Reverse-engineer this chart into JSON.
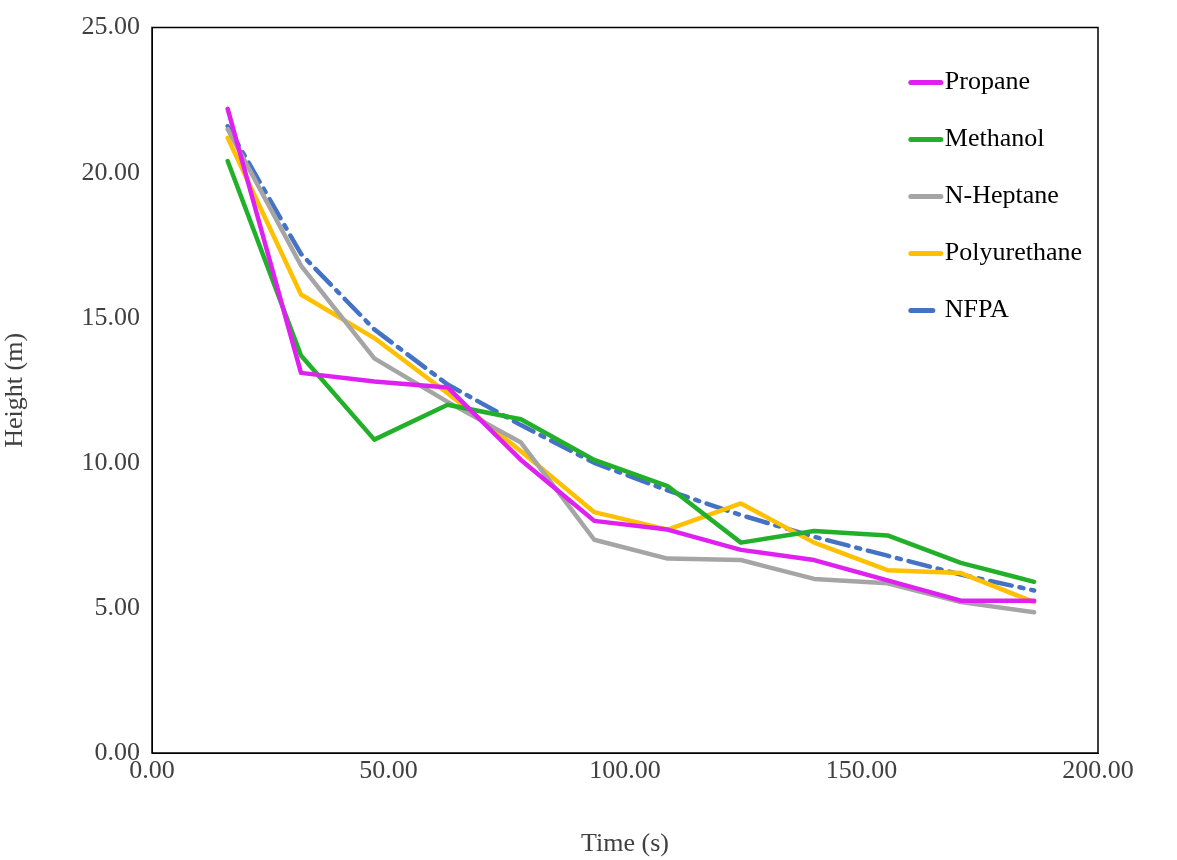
{
  "chart_data": {
    "type": "line",
    "xlabel": "Time (s)",
    "ylabel": "Height (m)",
    "x": [
      16,
      31.5,
      47,
      62.5,
      78,
      93.5,
      109,
      124.5,
      140,
      155.5,
      171,
      186.5
    ],
    "xlim": [
      0,
      200
    ],
    "xticks": [
      {
        "value": 0,
        "label": "0.00"
      },
      {
        "value": 50,
        "label": "50.00"
      },
      {
        "value": 100,
        "label": "100.00"
      },
      {
        "value": 150,
        "label": "150.00"
      },
      {
        "value": 200,
        "label": "200.00"
      }
    ],
    "ylim": [
      0,
      25
    ],
    "yticks": [
      {
        "value": 0,
        "label": "0.00"
      },
      {
        "value": 5,
        "label": "5.00"
      },
      {
        "value": 10,
        "label": "10.00"
      },
      {
        "value": 15,
        "label": "15.00"
      },
      {
        "value": 20,
        "label": "20.00"
      },
      {
        "value": 25,
        "label": "25.00"
      }
    ],
    "grid": false,
    "legend": "top right",
    "series": [
      {
        "name": "Propane",
        "color": "#e020f0",
        "values": [
          22.2,
          13.1,
          12.8,
          12.6,
          10.1,
          8.0,
          7.7,
          7.0,
          6.65,
          5.95,
          5.25,
          5.25
        ]
      },
      {
        "name": "Methanol",
        "color": "#22b02a",
        "values": [
          20.4,
          13.7,
          10.8,
          12.0,
          11.5,
          10.1,
          9.2,
          7.25,
          7.65,
          7.5,
          6.55,
          5.9
        ]
      },
      {
        "name": "N-Heptane",
        "color": "#a5a5a5",
        "values": [
          21.5,
          16.8,
          13.6,
          12.1,
          10.7,
          7.35,
          6.7,
          6.65,
          6.0,
          5.85,
          5.2,
          4.85
        ]
      },
      {
        "name": "Polyurethane",
        "color": "#ffc000",
        "values": [
          21.2,
          15.8,
          14.3,
          12.4,
          10.4,
          8.3,
          7.7,
          8.6,
          7.25,
          6.3,
          6.2,
          5.2
        ]
      },
      {
        "name": "NFPA",
        "color": "#4472c4",
        "line_style": "dashed",
        "values": [
          21.6,
          17.2,
          14.6,
          12.7,
          11.3,
          10.0,
          9.05,
          8.2,
          7.45,
          6.8,
          6.15,
          5.6
        ]
      }
    ]
  }
}
